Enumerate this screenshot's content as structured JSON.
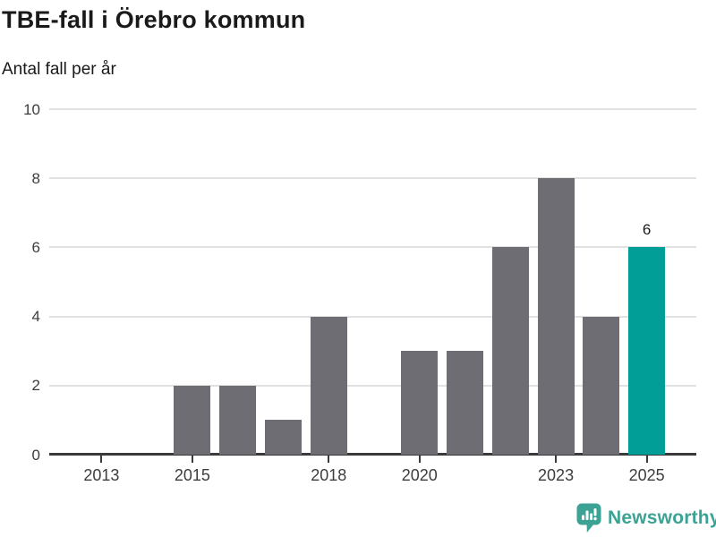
{
  "header": {
    "title": "TBE-fall i Örebro kommun",
    "subtitle": "Antal fall per år"
  },
  "chart_data": {
    "type": "bar",
    "title": "TBE-fall i Örebro kommun",
    "subtitle": "Antal fall per år",
    "categories": [
      "2013",
      "2014",
      "2015",
      "2016",
      "2017",
      "2018",
      "2019",
      "2020",
      "2021",
      "2022",
      "2023",
      "2024",
      "2025"
    ],
    "values": [
      0,
      0,
      2,
      2,
      1,
      4,
      0,
      3,
      3,
      6,
      8,
      4,
      6
    ],
    "ylim": [
      0,
      10
    ],
    "yticks": [
      0,
      2,
      4,
      6,
      8,
      10
    ],
    "xtick_labels": [
      "2013",
      "2015",
      "2018",
      "2020",
      "2023",
      "2025"
    ],
    "grid": true,
    "legend_position": "none",
    "bar_color": "#6e6d73",
    "highlight_index": 12,
    "highlight_color": "#009e96",
    "value_labels": [
      {
        "index": 12,
        "text": "6"
      }
    ],
    "gridline_color": "#e1e1e1",
    "axis_color": "#3a3a3a"
  },
  "footer": {
    "brand": "Newsworthy",
    "brand_color": "#3ba294",
    "logo_icon": "newsworthy-speech-bubble-barchart-icon"
  }
}
